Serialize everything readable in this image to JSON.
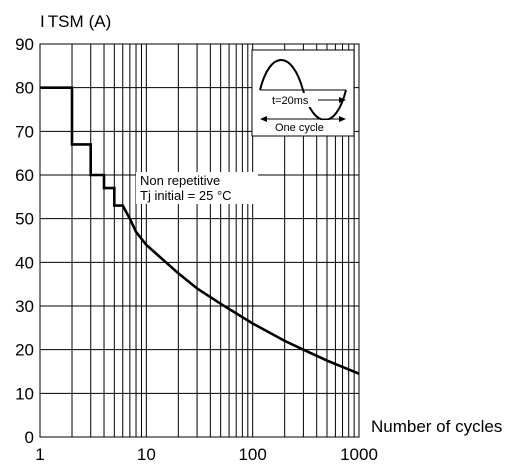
{
  "chart_data": {
    "type": "line",
    "ylabel_main": "I",
    "ylabel_sub": "TSM",
    "ylabel_unit": "(A)",
    "xlabel": "Number of cycles",
    "x_scale": "log",
    "xlim": [
      1,
      1000
    ],
    "ylim": [
      0,
      90
    ],
    "x_ticks": [
      1,
      10,
      100,
      1000
    ],
    "x_tick_labels": [
      "1",
      "10",
      "100",
      "1000"
    ],
    "y_ticks": [
      0,
      10,
      20,
      30,
      40,
      50,
      60,
      70,
      80,
      90
    ],
    "y_tick_labels": [
      "0",
      "10",
      "20",
      "30",
      "40",
      "50",
      "60",
      "70",
      "80",
      "90"
    ],
    "grid": true,
    "annotation_line1": "Non repetitive",
    "annotation_line2": "Tj initial = 25 °C",
    "inset_label_period": "t=20ms",
    "inset_label_cycle": "One cycle",
    "series": [
      {
        "x": [
          1,
          2,
          2,
          3,
          3,
          4,
          4,
          5,
          5,
          6,
          7,
          8,
          10,
          20,
          30,
          50,
          100,
          200,
          300,
          500,
          1000
        ],
        "y": [
          80,
          80,
          67,
          67,
          60,
          60,
          57,
          57,
          53,
          53,
          50,
          47,
          44,
          37.5,
          34,
          30.5,
          26,
          22,
          20,
          17.5,
          14.5
        ]
      }
    ]
  }
}
